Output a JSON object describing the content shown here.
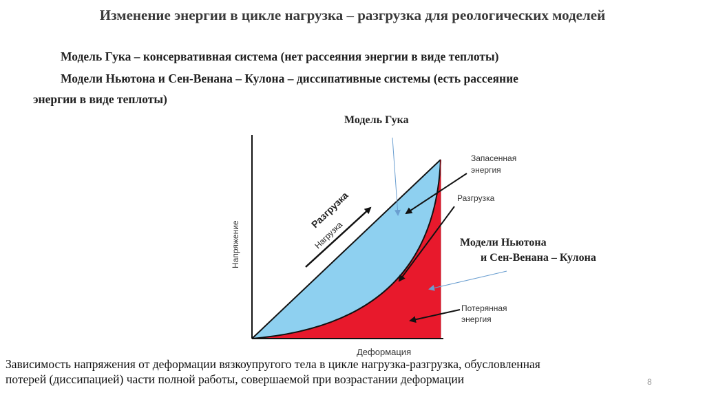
{
  "title": "Изменение энергии в цикле нагрузка – разгрузка для реологических моделей",
  "text": {
    "line1": "Модель  Гука – консервативная система (нет рассеяния энергии в виде теплоты)",
    "line2": "Модели Ньютона и Сен-Венана – Кулона – диссипативные системы (есть рассеяние",
    "line3": "энергии в виде теплоты)"
  },
  "diagram": {
    "hooke_label": "Модель  Гука",
    "newton_label_1": "Модели Ньютона",
    "newton_label_2": "и Сен-Венана – Кулона",
    "y_axis_label": "Напряжение",
    "x_axis_label": "Деформация",
    "unload_label": "Разгрузка",
    "load_label": "Нагрузка",
    "stored_label_1": "Запасенная",
    "stored_label_2": "энергия",
    "unloading_label": "Разгрузка",
    "lost_label_1": "Потерянная",
    "lost_label_2": "энергия",
    "colors": {
      "stored": "#8ed0f0",
      "lost": "#e8192c",
      "arrow_blue": "#6a9ed0"
    }
  },
  "caption": {
    "line1": "Зависимость напряжения от деформации вязкоупругого тела в цикле нагрузка-разгрузка, обусловленная",
    "line2": "потерей  (диссипацией) части полной работы, совершаемой при возрастании деформации"
  },
  "page_number": "8"
}
